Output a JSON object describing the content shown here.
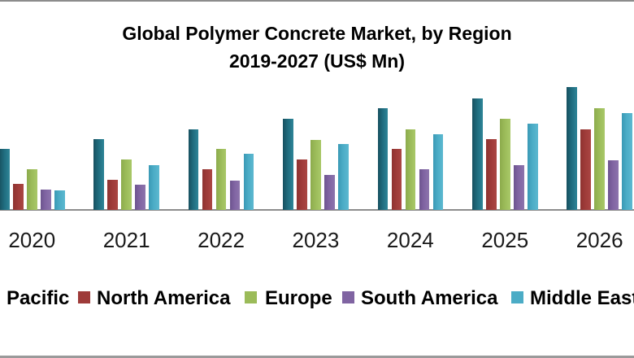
{
  "title": {
    "line1": "Global Polymer Concrete Market, by Region",
    "line2": "2019-2027 (US$ Mn)"
  },
  "legend": {
    "items": [
      {
        "key": "pacific",
        "label": "Pacific",
        "color": "#1f6b7d",
        "swatch_visible": false,
        "label_truncated_at_left_edge": true
      },
      {
        "key": "north-america",
        "label": "North America",
        "color": "#9e3b39",
        "swatch_visible": true
      },
      {
        "key": "europe",
        "label": "Europe",
        "color": "#9bbb59",
        "swatch_visible": true
      },
      {
        "key": "south-america",
        "label": "South America",
        "color": "#8064a2",
        "swatch_visible": true
      },
      {
        "key": "middle-east",
        "label": "Middle East",
        "color": "#4bacc6",
        "swatch_visible": true,
        "label_truncated_at_right_edge": true
      }
    ]
  },
  "chart_data": {
    "type": "bar",
    "title": "Global Polymer Concrete Market, by Region 2019-2027 (US$ Mn)",
    "xlabel": "",
    "ylabel": "",
    "categories": [
      "2020",
      "2021",
      "2022",
      "2023",
      "2024",
      "2025",
      "2026"
    ],
    "series": [
      {
        "key": "pacific",
        "name": "Pacific",
        "color": "#1f6b7d",
        "values": [
          75,
          87,
          99,
          112,
          125,
          137,
          151
        ]
      },
      {
        "key": "north-america",
        "name": "North America",
        "color": "#9e3b39",
        "values": [
          32,
          37,
          50,
          62,
          75,
          87,
          99
        ]
      },
      {
        "key": "europe",
        "name": "Europe",
        "color": "#9bbb59",
        "values": [
          50,
          62,
          75,
          86,
          99,
          112,
          125
        ]
      },
      {
        "key": "south-america",
        "name": "South America",
        "color": "#8064a2",
        "values": [
          25,
          31,
          36,
          43,
          50,
          55,
          61
        ]
      },
      {
        "key": "middle-east",
        "name": "Middle East",
        "color": "#4bacc6",
        "values": [
          24,
          55,
          69,
          81,
          93,
          106,
          119
        ]
      }
    ],
    "ylim": [
      0,
      160
    ],
    "grid": false,
    "y_axis_visible": false,
    "legend_position": "bottom",
    "note": "No y-axis scale or data labels are shown in the image; values are estimated relative bar heights in arbitrary units. First group's Pacific bar and last group's Middle East bar are clipped by the image edges."
  }
}
